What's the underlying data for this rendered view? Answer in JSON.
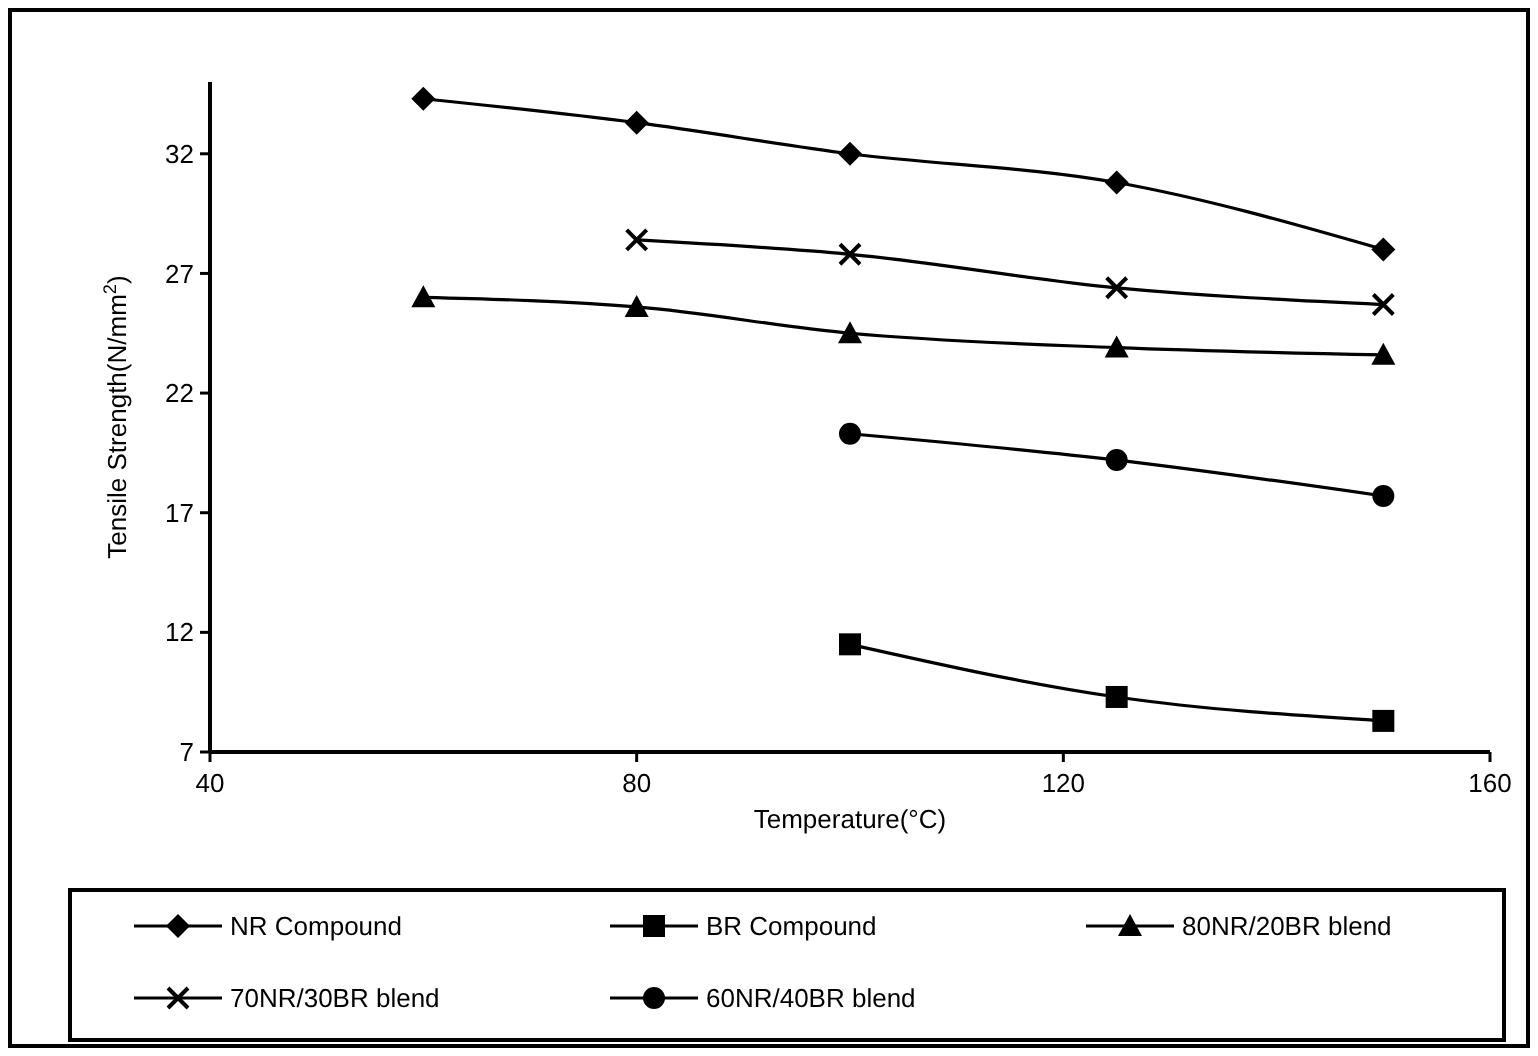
{
  "chart_data": {
    "type": "line",
    "xlabel": "Temperature(°C)",
    "ylabel": "Tensile Strength(N/mm$^{2}$)",
    "xlim": [
      40,
      160
    ],
    "xticks": [
      40,
      80,
      120,
      160
    ],
    "ylim": [
      7,
      35
    ],
    "yticks": [
      7,
      12,
      17,
      22,
      27,
      32
    ],
    "grid": false,
    "legend": "bottom",
    "line_style": "solid",
    "series": [
      {
        "name": "NR Compound",
        "color": "#000000",
        "marker": "diamond",
        "x": [
          60,
          80,
          100,
          125,
          150
        ],
        "values": [
          34.3,
          33.3,
          32.0,
          30.8,
          28.0
        ]
      },
      {
        "name": "BR Compound",
        "color": "#000000",
        "marker": "square",
        "x": [
          100,
          125,
          150
        ],
        "values": [
          11.5,
          9.3,
          8.3
        ]
      },
      {
        "name": "80NR/20BR blend",
        "color": "#000000",
        "marker": "triangle",
        "x": [
          60,
          80,
          100,
          125,
          150
        ],
        "values": [
          26.0,
          25.6,
          24.5,
          23.9,
          23.6
        ]
      },
      {
        "name": "70NR/30BR blend",
        "color": "#000000",
        "marker": "cross",
        "x": [
          80,
          100,
          125,
          150
        ],
        "values": [
          28.4,
          27.8,
          26.4,
          25.7
        ]
      },
      {
        "name": "60NR/40BR blend",
        "color": "#000000",
        "marker": "circle",
        "x": [
          100,
          125,
          150
        ],
        "values": [
          20.3,
          19.2,
          17.7
        ]
      }
    ]
  }
}
